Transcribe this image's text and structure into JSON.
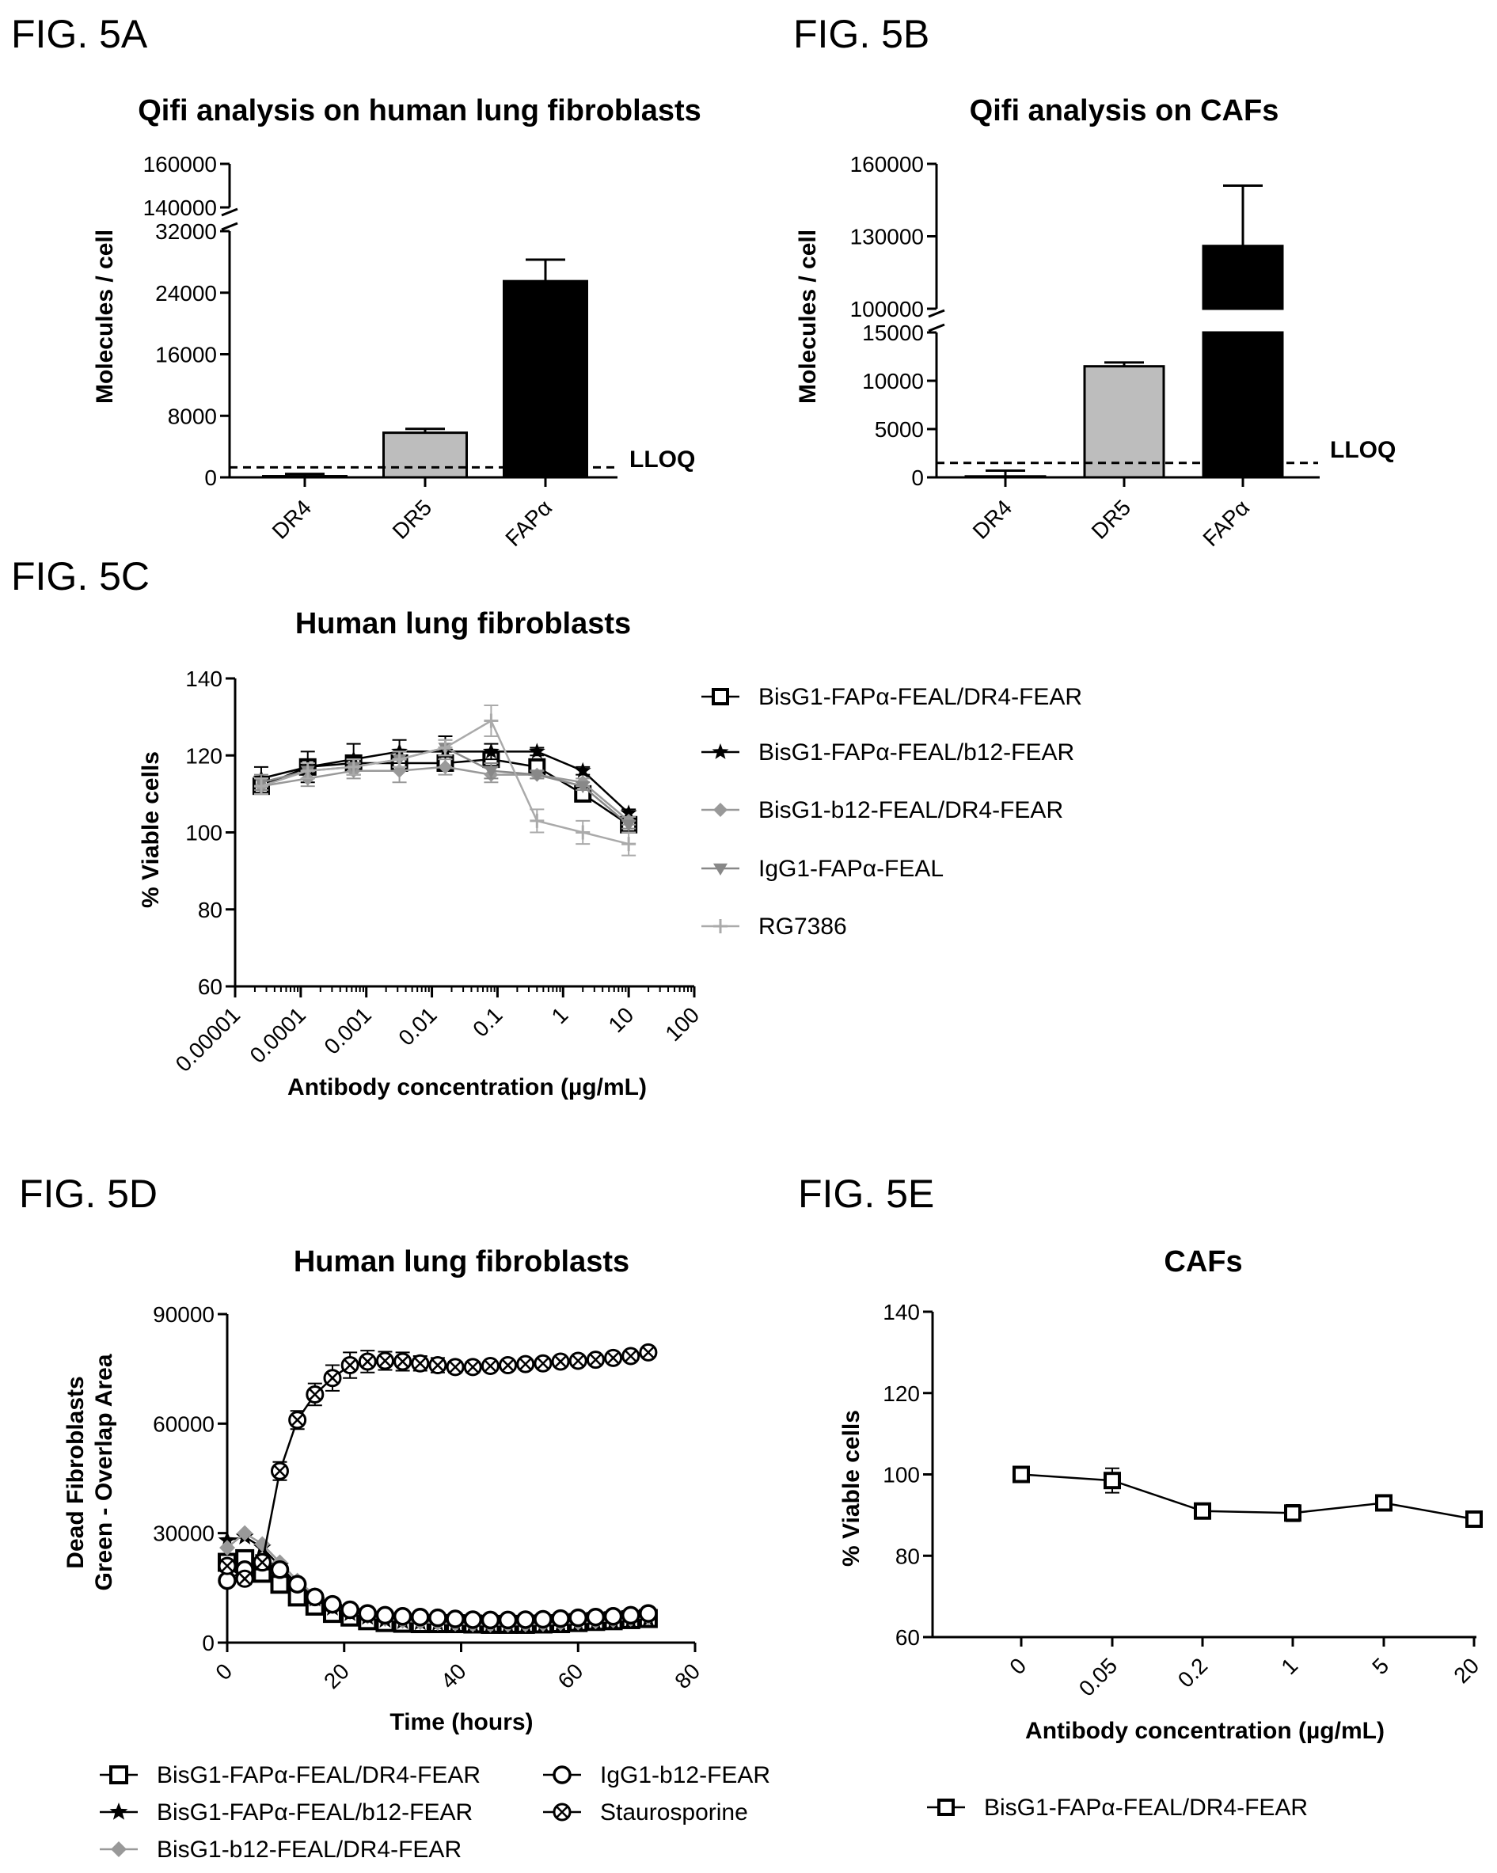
{
  "chart_data": [
    {
      "id": "A",
      "panel_label": "FIG. 5A",
      "type": "bar",
      "title": "Qifi analysis on human lung fibroblasts",
      "ylabel": "Molecules / cell",
      "categories": [
        "DR4",
        "DR5",
        "FAPα"
      ],
      "values": [
        150,
        5800,
        25500
      ],
      "errors": [
        300,
        500,
        2800
      ],
      "bar_colors": [
        "#ffffff",
        "#bdbdbd",
        "#000000"
      ],
      "reference_line": {
        "label": "LLOQ",
        "value": 1300
      },
      "axis_breaks": true,
      "ylim_lower": [
        0,
        32000
      ],
      "ylim_upper": [
        140000,
        160000
      ],
      "yticks_lower": [
        "0",
        "8000",
        "16000",
        "24000",
        "32000"
      ],
      "yticks_upper": [
        "140000",
        "160000"
      ]
    },
    {
      "id": "B",
      "panel_label": "FIG. 5B",
      "type": "bar",
      "title": "Qifi analysis on CAFs",
      "ylabel": "Molecules / cell",
      "categories": [
        "DR4",
        "DR5",
        "FAPα"
      ],
      "values": [
        100,
        11500,
        126000
      ],
      "errors": [
        600,
        400,
        25000
      ],
      "bar_colors": [
        "#ffffff",
        "#bdbdbd",
        "#000000"
      ],
      "reference_line": {
        "label": "LLOQ",
        "value": 1500
      },
      "axis_breaks": true,
      "ylim_lower": [
        0,
        15000
      ],
      "ylim_upper": [
        100000,
        160000
      ],
      "yticks_lower": [
        "0",
        "5000",
        "10000",
        "15000"
      ],
      "yticks_upper": [
        "100000",
        "130000",
        "160000"
      ]
    },
    {
      "id": "C",
      "panel_label": "FIG. 5C",
      "type": "line",
      "title": "Human lung fibroblasts",
      "xlabel": "Antibody concentration (µg/mL)",
      "ylabel": "% Viable cells",
      "x_scale": "log",
      "xlim": [
        1e-05,
        100
      ],
      "ylim": [
        60,
        140
      ],
      "xticks": [
        "0.00001",
        "0.0001",
        "0.001",
        "0.01",
        "0.1",
        "1",
        "10",
        "100"
      ],
      "yticks": [
        "60",
        "80",
        "100",
        "120",
        "140"
      ],
      "legend_position": "right",
      "x": [
        2.5e-05,
        0.000128,
        0.00064,
        0.0032,
        0.016,
        0.08,
        0.4,
        2,
        10
      ],
      "series": [
        {
          "name": "BisG1-FAPα-FEAL/DR4-FEAR",
          "marker": "open-square",
          "color": "#000000",
          "values": [
            112,
            117,
            118,
            118,
            118,
            119,
            117,
            110,
            102
          ],
          "errors": [
            2,
            2,
            2,
            2,
            2,
            2,
            2,
            1,
            1
          ]
        },
        {
          "name": "BisG1-FAPα-FEAL/b12-FEAR",
          "marker": "star",
          "color": "#000000",
          "values": [
            114,
            117,
            119,
            121,
            121,
            121,
            121,
            116,
            105
          ],
          "errors": [
            3,
            4,
            4,
            3,
            4,
            2,
            1,
            1,
            1
          ]
        },
        {
          "name": "BisG1-b12-FEAL/DR4-FEAR",
          "marker": "diamond",
          "color": "#999999",
          "values": [
            112,
            114,
            116,
            116,
            117,
            115,
            115,
            113,
            103
          ],
          "errors": [
            2,
            2,
            2,
            3,
            2,
            2,
            1,
            1,
            1
          ]
        },
        {
          "name": "IgG1-FAPα-FEAL",
          "marker": "triangle-down",
          "color": "#888888",
          "values": [
            113,
            116,
            117,
            119,
            122,
            116,
            115,
            112,
            102
          ],
          "errors": [
            2,
            2,
            2,
            2,
            2,
            2,
            1,
            1,
            1
          ]
        },
        {
          "name": "RG7386",
          "marker": "plus",
          "color": "#aaaaaa",
          "values": [
            112,
            116,
            117,
            119,
            122,
            129,
            103,
            100,
            97
          ],
          "errors": [
            2,
            2,
            2,
            2,
            2,
            4,
            3,
            3,
            3
          ]
        }
      ]
    },
    {
      "id": "D",
      "panel_label": "FIG. 5D",
      "type": "line",
      "title": "Human lung fibroblasts",
      "xlabel": "Time (hours)",
      "ylabel": "Dead Fibroblasts Green - Overlap Area",
      "xlim": [
        0,
        80
      ],
      "ylim": [
        0,
        90000
      ],
      "xticks": [
        "0",
        "20",
        "40",
        "60",
        "80"
      ],
      "yticks": [
        "0",
        "30000",
        "60000",
        "90000"
      ],
      "legend_position": "bottom",
      "x": [
        0,
        3,
        6,
        9,
        12,
        15,
        18,
        21,
        24,
        27,
        30,
        33,
        36,
        39,
        42,
        45,
        48,
        51,
        54,
        57,
        60,
        63,
        66,
        69,
        72
      ],
      "series": [
        {
          "name": "BisG1-FAPα-FEAL/DR4-FEAR",
          "marker": "open-square",
          "color": "#000000",
          "values": [
            22000,
            23000,
            19000,
            16000,
            12500,
            10000,
            8000,
            7000,
            6000,
            5500,
            5300,
            5200,
            5200,
            5200,
            5100,
            5000,
            5000,
            5000,
            5100,
            5200,
            5500,
            5800,
            6000,
            6300,
            6600
          ]
        },
        {
          "name": "BisG1-FAPα-FEAL/b12-FEAR",
          "marker": "star",
          "color": "#000000",
          "values": [
            28000,
            29000,
            26000,
            21000,
            16000,
            12000,
            9500,
            8000,
            7000,
            6200,
            5800,
            5500,
            5300,
            5100,
            5000,
            4900,
            4800,
            4800,
            4700,
            4800,
            5000,
            5300,
            5600,
            6000,
            6500
          ]
        },
        {
          "name": "BisG1-b12-FEAL/DR4-FEAR",
          "marker": "diamond",
          "color": "#999999",
          "values": [
            26000,
            30000,
            27000,
            22000,
            17000,
            13000,
            10000,
            8500,
            7200,
            6500,
            6000,
            5600,
            5400,
            5200,
            5000,
            4900,
            4900,
            5000,
            5100,
            5300,
            5500,
            5800,
            6100,
            6500,
            7000
          ]
        },
        {
          "name": "IgG1-b12-FEAR",
          "marker": "open-circle",
          "color": "#000000",
          "values": [
            17000,
            20000,
            22000,
            20000,
            16000,
            12500,
            10500,
            9000,
            8000,
            7500,
            7200,
            7000,
            6800,
            6500,
            6300,
            6200,
            6200,
            6300,
            6400,
            6600,
            6800,
            7000,
            7200,
            7500,
            8000
          ]
        },
        {
          "name": "Staurosporine",
          "marker": "circle-x",
          "color": "#000000",
          "values": [
            21000,
            17500,
            22000,
            47000,
            61000,
            68000,
            72500,
            76000,
            77000,
            77200,
            77000,
            76500,
            76000,
            75500,
            75500,
            75800,
            76000,
            76300,
            76500,
            77000,
            77200,
            77500,
            78000,
            78500,
            79500
          ],
          "errors": [
            1500,
            1500,
            2000,
            2500,
            2500,
            3000,
            3500,
            3500,
            3000,
            2500,
            2500,
            2000,
            2000,
            1500,
            1500,
            1200,
            1200,
            1200,
            1000,
            1000,
            1000,
            1000,
            1000,
            1000,
            800
          ]
        }
      ]
    },
    {
      "id": "E",
      "panel_label": "FIG. 5E",
      "type": "line",
      "title": "CAFs",
      "xlabel": "Antibody concentration (µg/mL)",
      "ylabel": "% Viable cells",
      "ylim": [
        60,
        140
      ],
      "yticks": [
        "60",
        "80",
        "100",
        "120",
        "140"
      ],
      "categories": [
        "0",
        "0.05",
        "0.2",
        "1",
        "5",
        "20"
      ],
      "legend_position": "bottom",
      "series": [
        {
          "name": "BisG1-FAPα-FEAL/DR4-FEAR",
          "marker": "open-square",
          "color": "#000000",
          "values": [
            100,
            98.5,
            91,
            90.5,
            93,
            89
          ],
          "errors": [
            0.5,
            3,
            1,
            2,
            1,
            1
          ]
        }
      ]
    }
  ]
}
